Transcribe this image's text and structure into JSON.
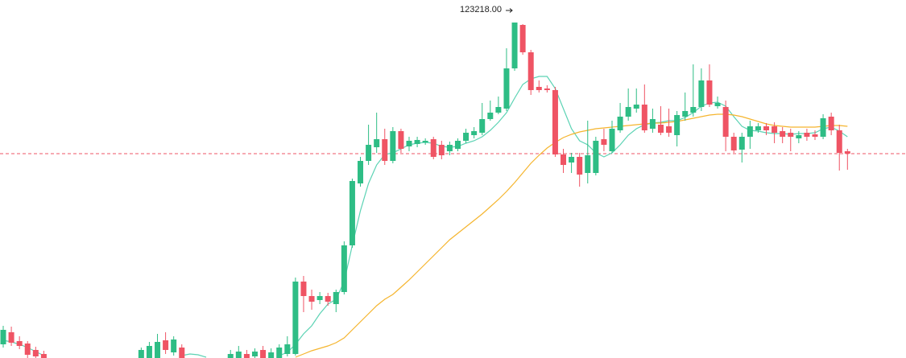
{
  "chart_data": {
    "type": "candlestick",
    "annotation": "123218.00",
    "ylim": [
      102368,
      124618
    ],
    "up_color": "#2ebd85",
    "down_color": "#ef5464",
    "price_line_color": "#ef5464",
    "categories": [
      null,
      null,
      null,
      null,
      null,
      null,
      null,
      null,
      null,
      null,
      null,
      null,
      null,
      null,
      null,
      null,
      null,
      null,
      null,
      null,
      null,
      null,
      null,
      null,
      null,
      null,
      null,
      null,
      null,
      null,
      null,
      null,
      null,
      null,
      null,
      null,
      null,
      null,
      null,
      null,
      null,
      null,
      null,
      null,
      null,
      null,
      null,
      null,
      null,
      null,
      null,
      null,
      null,
      null,
      null,
      null,
      null,
      null,
      null,
      null,
      null,
      null,
      null,
      null,
      null,
      null,
      null,
      null,
      null,
      null,
      null,
      null,
      null,
      null,
      null,
      null,
      null,
      null,
      null,
      null,
      null,
      null,
      null,
      null,
      null,
      null,
      null,
      null,
      null,
      null,
      null,
      null,
      null,
      null,
      null,
      null,
      null,
      null,
      null,
      null,
      null,
      null,
      null,
      null,
      null
    ],
    "open": [
      103218,
      103968,
      103418,
      103268,
      102868,
      102618,
      null,
      null,
      null,
      null,
      null,
      null,
      null,
      null,
      null,
      null,
      null,
      102368,
      102368,
      102368,
      103468,
      102718,
      103018,
      null,
      null,
      null,
      null,
      null,
      102368,
      102368,
      102618,
      102468,
      102868,
      102368,
      102368,
      102618,
      102618,
      107118,
      106218,
      105968,
      106218,
      105718,
      106468,
      109368,
      113218,
      114618,
      115468,
      115968,
      114618,
      116468,
      115518,
      115668,
      115768,
      115968,
      115618,
      115218,
      115368,
      115868,
      116218,
      116368,
      117218,
      117618,
      117868,
      120368,
      123068,
      121368,
      119218,
      119118,
      119018,
      115018,
      114518,
      114868,
      113868,
      113868,
      115968,
      115218,
      116518,
      117368,
      117868,
      118118,
      116618,
      116868,
      116768,
      116218,
      117368,
      117618,
      117968,
      119618,
      118018,
      117968,
      116118,
      115318,
      116118,
      116518,
      116768,
      116768,
      116468,
      116368,
      116018,
      116368,
      116268,
      116118,
      117368,
      116518,
      115218
    ],
    "high": [
      104368,
      104318,
      103718,
      103418,
      103068,
      102818,
      null,
      null,
      null,
      null,
      null,
      null,
      null,
      null,
      null,
      null,
      null,
      103018,
      103368,
      103868,
      103968,
      103718,
      103218,
      null,
      null,
      null,
      null,
      null,
      102868,
      103118,
      102868,
      102968,
      103118,
      102968,
      103218,
      103718,
      107368,
      107468,
      106618,
      106468,
      106418,
      106618,
      109618,
      113518,
      114868,
      116868,
      117618,
      116618,
      116718,
      116618,
      116118,
      116118,
      116018,
      116118,
      115868,
      115818,
      116018,
      116618,
      116718,
      118218,
      118368,
      118618,
      121618,
      123218,
      123118,
      121518,
      119618,
      119318,
      119218,
      115368,
      115118,
      115118,
      117118,
      116118,
      116618,
      117118,
      118218,
      119118,
      119118,
      119368,
      117868,
      118018,
      117868,
      117718,
      118868,
      120618,
      120368,
      120618,
      118618,
      118368,
      116368,
      116368,
      117118,
      116968,
      116968,
      117018,
      116718,
      116618,
      116468,
      116618,
      116518,
      117518,
      117618,
      116868,
      115368
    ],
    "low": [
      103018,
      103118,
      102918,
      102368,
      102268,
      102118,
      null,
      null,
      null,
      null,
      null,
      null,
      null,
      null,
      null,
      null,
      null,
      102218,
      102218,
      102218,
      102618,
      102518,
      102118,
      null,
      null,
      null,
      null,
      null,
      102218,
      102218,
      102218,
      102318,
      102218,
      102218,
      102268,
      102468,
      102518,
      105218,
      105368,
      105718,
      105618,
      105218,
      106318,
      109218,
      113018,
      114368,
      115118,
      114368,
      114468,
      115118,
      115218,
      115468,
      115618,
      114718,
      114718,
      114968,
      115218,
      115718,
      116018,
      116218,
      117118,
      117518,
      117718,
      120218,
      121218,
      118718,
      118868,
      118868,
      114868,
      113868,
      113868,
      113018,
      113218,
      113718,
      115218,
      115118,
      116368,
      117118,
      117618,
      116368,
      116368,
      116218,
      116118,
      115518,
      117118,
      117368,
      117718,
      117968,
      117868,
      115218,
      115118,
      114518,
      115368,
      116368,
      116218,
      115718,
      115718,
      115218,
      115718,
      115868,
      115918,
      115968,
      116218,
      114018,
      114068
    ],
    "close": [
      104118,
      103318,
      103118,
      102568,
      102468,
      102318,
      null,
      null,
      null,
      null,
      null,
      null,
      null,
      null,
      null,
      null,
      null,
      102868,
      103118,
      103368,
      102868,
      103518,
      102368,
      null,
      null,
      null,
      null,
      null,
      102618,
      102768,
      102368,
      102768,
      102368,
      102718,
      103018,
      103218,
      107118,
      106218,
      105868,
      106218,
      105868,
      106468,
      109368,
      113368,
      114618,
      115618,
      115968,
      114618,
      116468,
      115368,
      115868,
      115918,
      115868,
      114868,
      114968,
      115618,
      115868,
      116368,
      116468,
      117218,
      117618,
      117968,
      120368,
      123218,
      121368,
      119018,
      119018,
      119018,
      115018,
      114368,
      114868,
      113768,
      114968,
      115868,
      115618,
      116618,
      117368,
      117968,
      118118,
      116518,
      117218,
      116368,
      116368,
      117468,
      117718,
      117968,
      119618,
      118118,
      118218,
      116118,
      115268,
      116118,
      116768,
      116768,
      116518,
      116368,
      116118,
      116118,
      116218,
      116118,
      116118,
      117268,
      116518,
      115118,
      115068
    ],
    "series": [
      {
        "color": "#5cd3b4",
        "values": [
          103468,
          103368,
          103218,
          103018,
          102768,
          102518,
          null,
          null,
          null,
          null,
          null,
          null,
          null,
          null,
          null,
          null,
          null,
          null,
          null,
          null,
          null,
          null,
          102518,
          102618,
          102568,
          102418,
          null,
          null,
          null,
          null,
          null,
          null,
          null,
          null,
          102518,
          102718,
          103218,
          103868,
          104368,
          105118,
          105718,
          106018,
          107118,
          109368,
          111518,
          113218,
          114368,
          115018,
          115118,
          115368,
          115618,
          115718,
          115768,
          115718,
          115518,
          115468,
          115518,
          115718,
          115868,
          116118,
          116518,
          117018,
          117618,
          118518,
          119368,
          119718,
          119868,
          119868,
          119118,
          117868,
          116618,
          115868,
          115618,
          115118,
          114868,
          115118,
          115618,
          116218,
          116618,
          116868,
          116968,
          117018,
          117118,
          117118,
          117318,
          117618,
          118018,
          118218,
          118268,
          118018,
          117368,
          116768,
          116518,
          116468,
          116368,
          116318,
          116318,
          116268,
          116318,
          116318,
          116368,
          116618,
          116718,
          116468,
          116118
        ]
      },
      {
        "color": "#f5b52e",
        "values": [
          null,
          null,
          null,
          null,
          null,
          null,
          null,
          null,
          null,
          null,
          null,
          null,
          null,
          null,
          null,
          null,
          null,
          null,
          null,
          null,
          null,
          null,
          null,
          null,
          null,
          null,
          null,
          null,
          null,
          null,
          null,
          null,
          null,
          null,
          null,
          null,
          102418,
          102618,
          102818,
          102968,
          103118,
          103318,
          103618,
          104118,
          104618,
          105118,
          105618,
          106018,
          106318,
          106768,
          107218,
          107718,
          108218,
          108718,
          109218,
          109718,
          110118,
          110518,
          110918,
          111318,
          111768,
          112218,
          112718,
          113268,
          113868,
          114468,
          114968,
          115418,
          115768,
          116068,
          116268,
          116418,
          116518,
          116618,
          116668,
          116718,
          116768,
          116818,
          116868,
          116918,
          116968,
          116968,
          117018,
          117068,
          117168,
          117268,
          117368,
          117468,
          117518,
          117518,
          117468,
          117368,
          117218,
          117068,
          116918,
          116818,
          116768,
          116718,
          116718,
          116718,
          116718,
          116768,
          116818,
          116818,
          116768
        ]
      }
    ]
  }
}
